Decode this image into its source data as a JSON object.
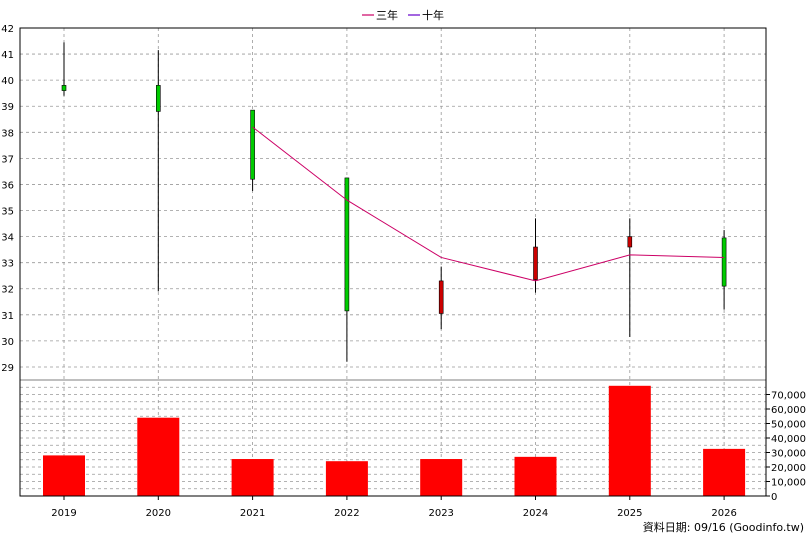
{
  "legend": [
    {
      "label": "三年",
      "color": "#cc0066"
    },
    {
      "label": "十年",
      "color": "#6600cc"
    }
  ],
  "source_note": "資料日期: 09/16  (Goodinfo.tw)",
  "colors": {
    "up": "#00cc00",
    "down": "#cc0000",
    "volume": "#ff0000",
    "ma3": "#cc0066",
    "grid": "#999999"
  },
  "chart_data": [
    {
      "type": "candlestick",
      "categories": [
        "2019",
        "2020",
        "2021",
        "2022",
        "2023",
        "2024",
        "2025",
        "2026"
      ],
      "ohlc": [
        {
          "open": 39.6,
          "high": 41.45,
          "low": 39.4,
          "close": 39.8
        },
        {
          "open": 38.8,
          "high": 41.15,
          "low": 31.9,
          "close": 39.8
        },
        {
          "open": 36.2,
          "high": 38.85,
          "low": 35.75,
          "close": 38.85
        },
        {
          "open": 31.15,
          "high": 36.25,
          "low": 29.2,
          "close": 36.25
        },
        {
          "open": 32.3,
          "high": 32.85,
          "low": 30.45,
          "close": 31.05
        },
        {
          "open": 33.6,
          "high": 34.7,
          "low": 31.85,
          "close": 32.35
        },
        {
          "open": 34.0,
          "high": 34.7,
          "low": 30.15,
          "close": 33.6
        },
        {
          "open": 32.1,
          "high": 34.25,
          "low": 31.2,
          "close": 33.95
        }
      ],
      "series": [
        {
          "name": "三年",
          "values": [
            null,
            null,
            38.2,
            35.4,
            33.2,
            32.3,
            33.3,
            33.2
          ]
        }
      ],
      "ylim": [
        28.5,
        42
      ],
      "yticks": [
        29,
        30,
        31,
        32,
        33,
        34,
        35,
        36,
        37,
        38,
        39,
        40,
        41,
        42
      ],
      "grid": true,
      "legend_position": "top-center"
    },
    {
      "type": "bar",
      "categories": [
        "2019",
        "2020",
        "2021",
        "2022",
        "2023",
        "2024",
        "2025",
        "2026"
      ],
      "values": [
        28000,
        54000,
        25500,
        24000,
        25500,
        27000,
        76000,
        32500
      ],
      "ylim": [
        0,
        80000
      ],
      "yticks": [
        0,
        10000,
        20000,
        30000,
        40000,
        50000,
        60000,
        70000
      ],
      "ytick_labels": [
        "0",
        "10,000",
        "20,000",
        "30,000",
        "40,000",
        "50,000",
        "60,000",
        "70,000"
      ],
      "grid": true
    }
  ]
}
